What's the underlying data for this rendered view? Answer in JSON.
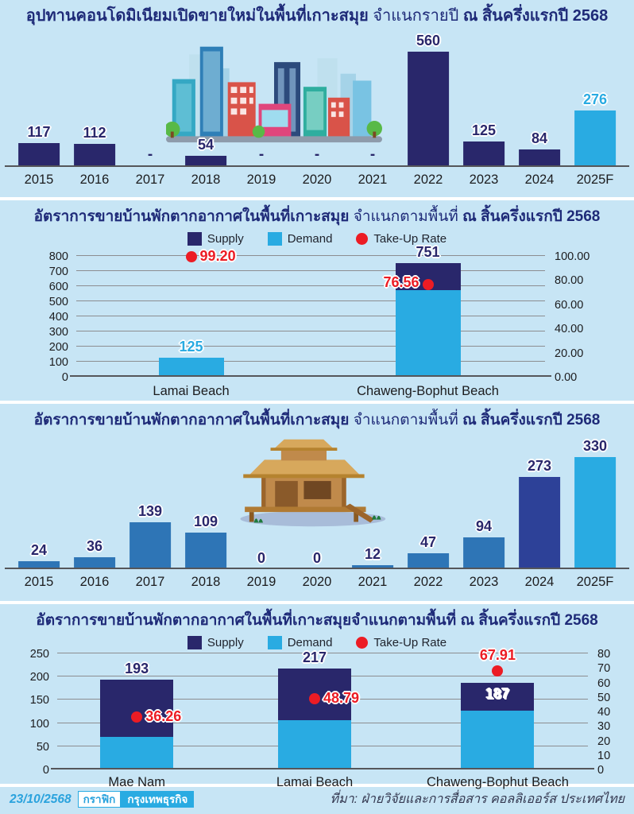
{
  "colors": {
    "navy": "#29276b",
    "lightblue": "#29abe2",
    "steelblue": "#2e75b6",
    "royalblue": "#2d4198",
    "red": "#ec1c24"
  },
  "panels": [
    {
      "t1": "อุปทานคอนโดมิเนียมเปิดขายใหม่ในพื้นที่เกาะสมุย ",
      "t2": "จำแนกรายปี ",
      "t3": "ณ สิ้นครึ่งแรกปี 2568"
    },
    {
      "t1": "อัตราการขายบ้านพักตากอากาศในพื้นที่เกาะสมุย ",
      "t2": "จำแนกตามพื้นที่ ",
      "t3": "ณ สิ้นครึ่งแรกปี 2568"
    },
    {
      "t1": "อัตราการขายบ้านพักตากอากาศในพื้นที่เกาะสมุย ",
      "t2": "จำแนกตามพื้นที่ ",
      "t3": "ณ สิ้นครึ่งแรกปี 2568"
    },
    {
      "t1": "อัตราการขายบ้านพักตากอากาศในพื้นที่เกาะสมุยจำแนกตามพื้นที่ ",
      "t2": "",
      "t3": "ณ สิ้นครึ่งแรกปี 2568"
    }
  ],
  "legend": {
    "supply": "Supply",
    "demand": "Demand",
    "takeup": "Take-Up Rate"
  },
  "chart_data": [
    {
      "type": "bar",
      "title": "อุปทานคอนโดมิเนียมเปิดขายใหม่ในพื้นที่เกาะสมุย จำแนกรายปี ณ สิ้นครึ่งแรกปี 2568",
      "categories": [
        "2015",
        "2016",
        "2017",
        "2018",
        "2019",
        "2020",
        "2021",
        "2022",
        "2023",
        "2024",
        "2025F"
      ],
      "values": [
        117,
        112,
        null,
        54,
        null,
        null,
        null,
        560,
        125,
        84,
        276
      ],
      "null_display": "-",
      "bar_colors": [
        "navy",
        "navy",
        "navy",
        "navy",
        "navy",
        "navy",
        "navy",
        "navy",
        "navy",
        "navy",
        "lightblue"
      ],
      "value_colors": [
        "navy",
        "navy",
        "navy",
        "navy",
        "navy",
        "navy",
        "navy",
        "navy",
        "navy",
        "navy",
        "lightblue"
      ],
      "ylim": [
        0,
        680
      ],
      "grid": false,
      "legend_position": "none"
    },
    {
      "type": "stacked-bar-dual-axis",
      "title": "อัตราการขายบ้านพักตากอากาศในพื้นที่เกาะสมุย จำแนกตามพื้นที่ ณ สิ้นครึ่งแรกปี 2568",
      "legend_position": "top",
      "left_axis": {
        "range": [
          0,
          800
        ],
        "tick_values": [
          800,
          700,
          600,
          500,
          400,
          300,
          200,
          100,
          0
        ],
        "tick_labels": [
          "800",
          "700",
          "600",
          "500",
          "400",
          "300",
          "200",
          "100",
          "0"
        ]
      },
      "right_axis": {
        "range": [
          0,
          100
        ],
        "tick_labels": [
          "100.00",
          "80.00",
          "60.00",
          "40.00",
          "20.00",
          "0.00"
        ]
      },
      "grid": true,
      "groups": [
        {
          "label": "Lamai Beach",
          "supply_total": 125,
          "demand": 124,
          "take_up": 99.2,
          "take_up_label": "99.20",
          "total_label": "125",
          "total_color": "lightblue",
          "total_pos": "above",
          "rate_label_side": "right"
        },
        {
          "label": "Chaweng-Bophut Beach",
          "supply_total": 751,
          "demand": 575,
          "take_up": 76.56,
          "take_up_label": "76.56",
          "total_label": "751",
          "total_color": "navy",
          "total_pos": "above",
          "rate_label_side": "left"
        }
      ]
    },
    {
      "type": "bar",
      "title": "อัตราการขายบ้านพักตากอากาศในพื้นที่เกาะสมุย จำแนกตามพื้นที่ ณ สิ้นครึ่งแรกปี 2568",
      "categories": [
        "2015",
        "2016",
        "2017",
        "2018",
        "2019",
        "2020",
        "2021",
        "2022",
        "2023",
        "2024",
        "2025F"
      ],
      "values": [
        24,
        36,
        139,
        109,
        0,
        0,
        12,
        47,
        94,
        273,
        330
      ],
      "null_display": "-",
      "bar_colors": [
        "steelblue",
        "steelblue",
        "steelblue",
        "steelblue",
        "steelblue",
        "steelblue",
        "steelblue",
        "steelblue",
        "steelblue",
        "royalblue",
        "lightblue"
      ],
      "value_colors": [
        "navy",
        "navy",
        "navy",
        "navy",
        "navy",
        "navy",
        "navy",
        "navy",
        "navy",
        "navy",
        "navy"
      ],
      "ylim": [
        0,
        385
      ],
      "grid": false,
      "legend_position": "none"
    },
    {
      "type": "stacked-bar-dual-axis",
      "title": "อัตราการขายบ้านพักตากอากาศในพื้นที่เกาะสมุยจำแนกตามพื้นที่ ณ สิ้นครึ่งแรกปี 2568",
      "legend_position": "top",
      "left_axis": {
        "range": [
          0,
          250
        ],
        "tick_values": [
          250,
          200,
          150,
          100,
          50,
          0
        ],
        "tick_labels": [
          "250",
          "200",
          "150",
          "100",
          "50",
          "0"
        ]
      },
      "right_axis": {
        "range": [
          0,
          80
        ],
        "tick_labels": [
          "80",
          "70",
          "60",
          "50",
          "40",
          "30",
          "20",
          "10",
          "0"
        ]
      },
      "grid": true,
      "groups": [
        {
          "label": "Mae Nam",
          "supply_total": 193,
          "demand": 70,
          "take_up": 36.26,
          "take_up_label": "36.26",
          "total_label": "193",
          "total_color": "navy",
          "total_pos": "above",
          "rate_label_side": "right"
        },
        {
          "label": "Lamai Beach",
          "supply_total": 217,
          "demand": 106,
          "take_up": 48.79,
          "take_up_label": "48.79",
          "total_label": "217",
          "total_color": "navy",
          "total_pos": "above",
          "rate_label_side": "right"
        },
        {
          "label": "Chaweng-Bophut Beach",
          "supply_total": 187,
          "demand": 127,
          "take_up": 67.91,
          "take_up_label": "67.91",
          "total_label": "187",
          "total_color": "white",
          "total_pos": "inside",
          "rate_label_side": "above"
        }
      ]
    }
  ],
  "footer": {
    "date": "23/10/2568",
    "badge_graphic": "กราฟิก",
    "badge_brand": "กรุงเทพธุรกิจ",
    "source": "ที่มา: ฝ่ายวิจัยและการสื่อสาร คอลลิเออร์ส ประเทศไทย"
  }
}
